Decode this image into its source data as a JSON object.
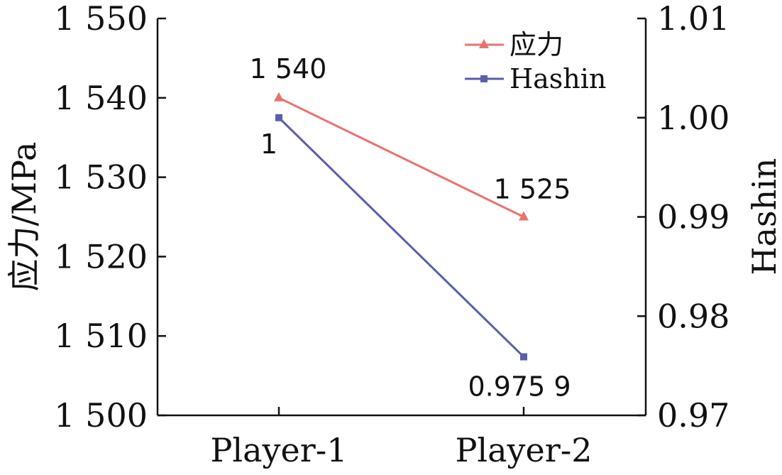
{
  "chart_data": {
    "type": "line",
    "categories": [
      "Player-1",
      "Player-2"
    ],
    "left_axis": {
      "label": "应力/MPa",
      "ylim": [
        1500,
        1550
      ],
      "ticks": [
        1500,
        1510,
        1520,
        1530,
        1540,
        1550
      ],
      "tick_labels": [
        "1 500",
        "1 510",
        "1 520",
        "1 530",
        "1 540",
        "1 550"
      ]
    },
    "right_axis": {
      "label": "Hashin",
      "ylim": [
        0.97,
        1.01
      ],
      "ticks": [
        0.97,
        0.98,
        0.99,
        1.0,
        1.01
      ],
      "tick_labels": [
        "0.97",
        "0.98",
        "0.99",
        "1.00",
        "1.01"
      ]
    },
    "series": [
      {
        "name": "应力",
        "axis": "left",
        "values": [
          1540,
          1525
        ],
        "data_labels": [
          "1 540",
          "1 525"
        ],
        "color": "#e8736e",
        "marker": "triangle"
      },
      {
        "name": "Hashin",
        "axis": "right",
        "values": [
          1.0,
          0.9759
        ],
        "data_labels": [
          "1",
          "0.975 9"
        ],
        "color": "#5a5fa8",
        "marker": "square"
      }
    ],
    "grid": false,
    "legend_position": "top-right"
  }
}
